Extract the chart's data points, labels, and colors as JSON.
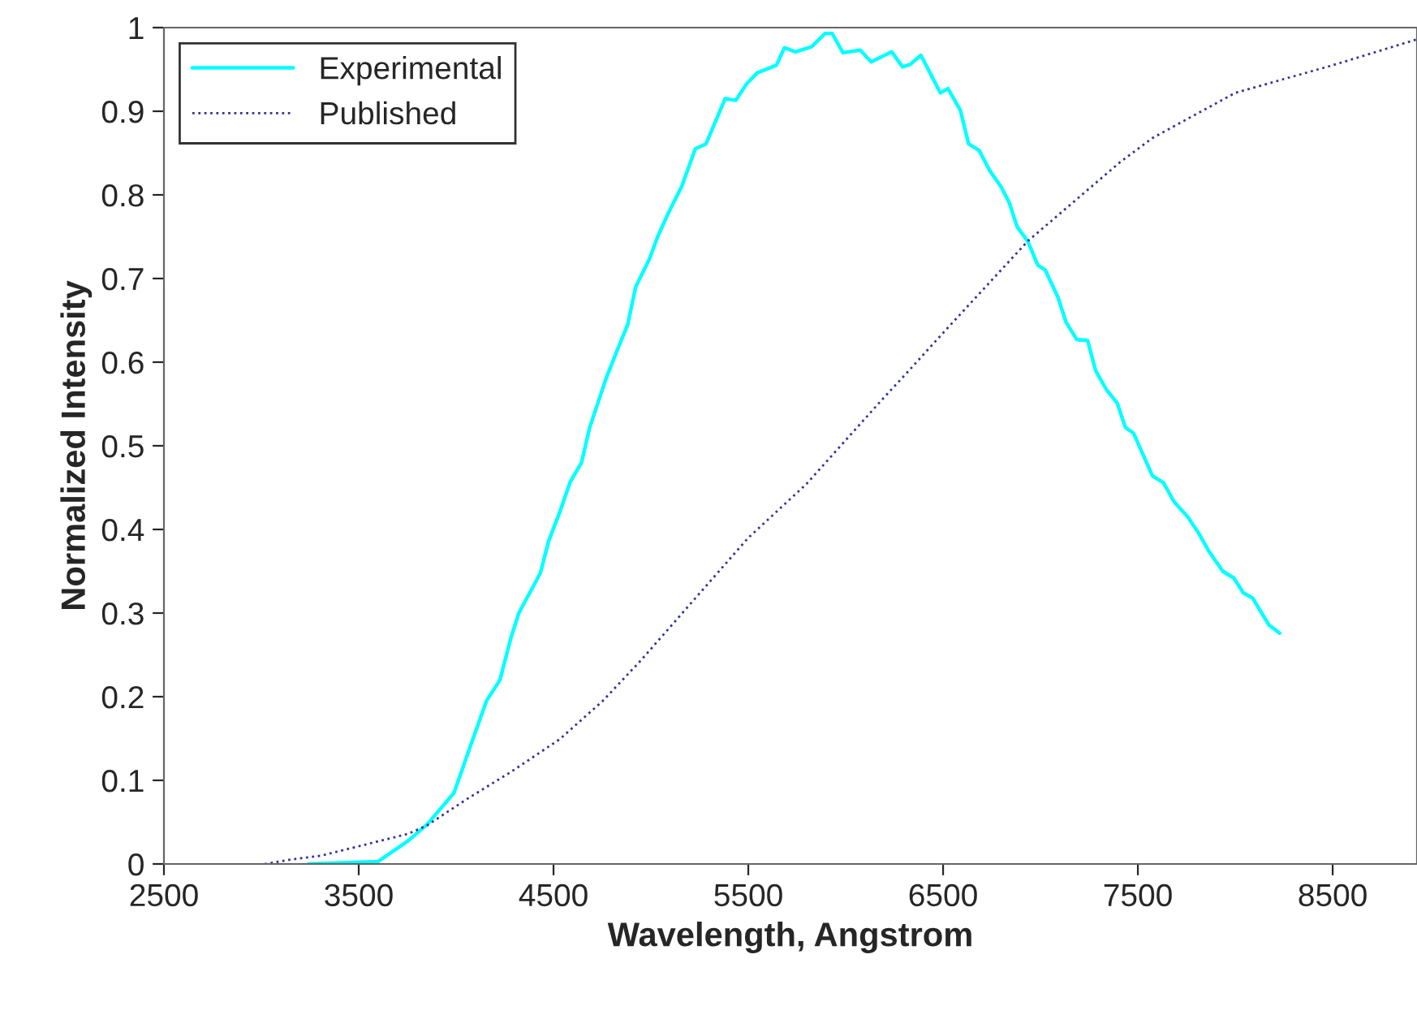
{
  "chart_data": {
    "type": "line",
    "xlabel": "Wavelength, Angstrom",
    "ylabel": "Normalized Intensity",
    "xlim": [
      2500,
      8933
    ],
    "xticks": [
      2500,
      3500,
      4500,
      5500,
      6500,
      7500,
      8500
    ],
    "ylim": [
      0,
      1
    ],
    "yticks": [
      0,
      0.1,
      0.2,
      0.3,
      0.4,
      0.5,
      0.6,
      0.7,
      0.8,
      0.9,
      1
    ],
    "grid": false,
    "legend": "top left",
    "marker": "none",
    "series": [
      {
        "name": "Experimental",
        "color": "#00ffff",
        "line_style": "solid",
        "x": [
          3242,
          3600,
          3750,
          3850,
          3989,
          4072,
          4156,
          4225,
          4281,
          4322,
          4433,
          4475,
          4531,
          4586,
          4644,
          4686,
          4769,
          4825,
          4881,
          4922,
          4992,
          5033,
          5089,
          5158,
          5228,
          5283,
          5381,
          5436,
          5492,
          5547,
          5644,
          5686,
          5742,
          5825,
          5894,
          5931,
          5986,
          6075,
          6131,
          6236,
          6292,
          6331,
          6386,
          6486,
          6525,
          6589,
          6631,
          6686,
          6742,
          6797,
          6839,
          6880,
          6936,
          6986,
          7025,
          7089,
          7131,
          7186,
          7242,
          7283,
          7339,
          7394,
          7436,
          7478,
          7575,
          7631,
          7686,
          7756,
          7811,
          7867,
          7936,
          7992,
          8042,
          8089,
          8172,
          8228
        ],
        "values": [
          0.0,
          0.003,
          0.027,
          0.047,
          0.085,
          0.14,
          0.195,
          0.22,
          0.27,
          0.3,
          0.348,
          0.386,
          0.42,
          0.457,
          0.48,
          0.522,
          0.58,
          0.613,
          0.645,
          0.69,
          0.723,
          0.749,
          0.778,
          0.81,
          0.855,
          0.861,
          0.915,
          0.913,
          0.933,
          0.946,
          0.955,
          0.976,
          0.971,
          0.977,
          0.993,
          0.993,
          0.97,
          0.973,
          0.959,
          0.971,
          0.953,
          0.956,
          0.967,
          0.922,
          0.927,
          0.901,
          0.861,
          0.853,
          0.828,
          0.81,
          0.791,
          0.762,
          0.744,
          0.716,
          0.71,
          0.678,
          0.648,
          0.627,
          0.626,
          0.59,
          0.567,
          0.551,
          0.522,
          0.515,
          0.464,
          0.456,
          0.433,
          0.415,
          0.396,
          0.373,
          0.35,
          0.342,
          0.324,
          0.318,
          0.286,
          0.276
        ]
      },
      {
        "name": "Published",
        "color": "#333399",
        "line_style": "dotted",
        "x": [
          3017,
          3142,
          3308,
          3531,
          3753,
          3850,
          4058,
          4281,
          4531,
          4753,
          4947,
          5500,
          5797,
          6186,
          6325,
          6500,
          6936,
          7408,
          7575,
          8000,
          8500,
          8933
        ],
        "values": [
          0.0,
          0.005,
          0.01,
          0.023,
          0.036,
          0.046,
          0.078,
          0.11,
          0.149,
          0.195,
          0.243,
          0.39,
          0.454,
          0.555,
          0.59,
          0.635,
          0.745,
          0.839,
          0.868,
          0.922,
          0.955,
          0.986
        ]
      }
    ]
  }
}
